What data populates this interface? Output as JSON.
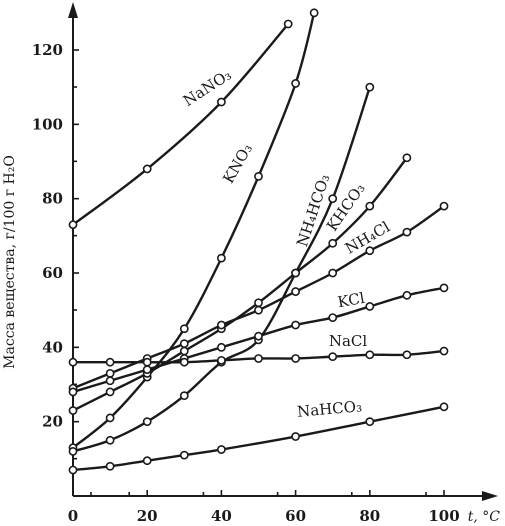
{
  "chart_data": {
    "type": "line",
    "ylabel": "Масса вещества, г/100 г H₂O",
    "xlabel": "t, °C",
    "xlim": [
      0,
      100
    ],
    "ylim": [
      0,
      130
    ],
    "x_ticks": [
      "0",
      "20",
      "40",
      "60",
      "80",
      "100"
    ],
    "y_ticks": [
      "20",
      "40",
      "60",
      "80",
      "100",
      "120"
    ],
    "grid": false,
    "series": [
      {
        "name": "NaNO₃",
        "points": [
          [
            0,
            73
          ],
          [
            20,
            88
          ],
          [
            40,
            106
          ],
          [
            58,
            127
          ]
        ]
      },
      {
        "name": "KNO₃",
        "points": [
          [
            0,
            13
          ],
          [
            10,
            21
          ],
          [
            20,
            32
          ],
          [
            30,
            45
          ],
          [
            40,
            64
          ],
          [
            50,
            86
          ],
          [
            60,
            111
          ],
          [
            65,
            130
          ]
        ]
      },
      {
        "name": "NH₄HCO₃",
        "points": [
          [
            0,
            12
          ],
          [
            10,
            15
          ],
          [
            20,
            20
          ],
          [
            30,
            27
          ],
          [
            40,
            36
          ],
          [
            50,
            42
          ],
          [
            60,
            60
          ],
          [
            70,
            80
          ],
          [
            80,
            110
          ]
        ]
      },
      {
        "name": "KHCO₃",
        "points": [
          [
            0,
            23
          ],
          [
            10,
            28
          ],
          [
            20,
            33
          ],
          [
            30,
            39
          ],
          [
            40,
            45
          ],
          [
            50,
            52
          ],
          [
            60,
            60
          ],
          [
            70,
            68
          ],
          [
            80,
            78
          ],
          [
            90,
            91
          ]
        ]
      },
      {
        "name": "NH₄Cl",
        "points": [
          [
            0,
            29
          ],
          [
            10,
            33
          ],
          [
            20,
            37
          ],
          [
            30,
            41
          ],
          [
            40,
            46
          ],
          [
            50,
            50
          ],
          [
            60,
            55
          ],
          [
            70,
            60
          ],
          [
            80,
            66
          ],
          [
            90,
            71
          ],
          [
            100,
            78
          ]
        ]
      },
      {
        "name": "KCl",
        "points": [
          [
            0,
            28
          ],
          [
            10,
            31
          ],
          [
            20,
            34
          ],
          [
            30,
            37
          ],
          [
            40,
            40
          ],
          [
            50,
            43
          ],
          [
            60,
            46
          ],
          [
            70,
            48
          ],
          [
            80,
            51
          ],
          [
            90,
            54
          ],
          [
            100,
            56
          ]
        ]
      },
      {
        "name": "NaCl",
        "points": [
          [
            0,
            36
          ],
          [
            10,
            36
          ],
          [
            20,
            36
          ],
          [
            30,
            36
          ],
          [
            40,
            36.5
          ],
          [
            50,
            37
          ],
          [
            60,
            37
          ],
          [
            70,
            37.5
          ],
          [
            80,
            38
          ],
          [
            90,
            38
          ],
          [
            100,
            39
          ]
        ]
      },
      {
        "name": "NaHCO₃",
        "points": [
          [
            0,
            7
          ],
          [
            10,
            8
          ],
          [
            20,
            9.5
          ],
          [
            30,
            11
          ],
          [
            40,
            12.5
          ],
          [
            60,
            16
          ],
          [
            80,
            20
          ],
          [
            100,
            24
          ]
        ]
      }
    ]
  }
}
